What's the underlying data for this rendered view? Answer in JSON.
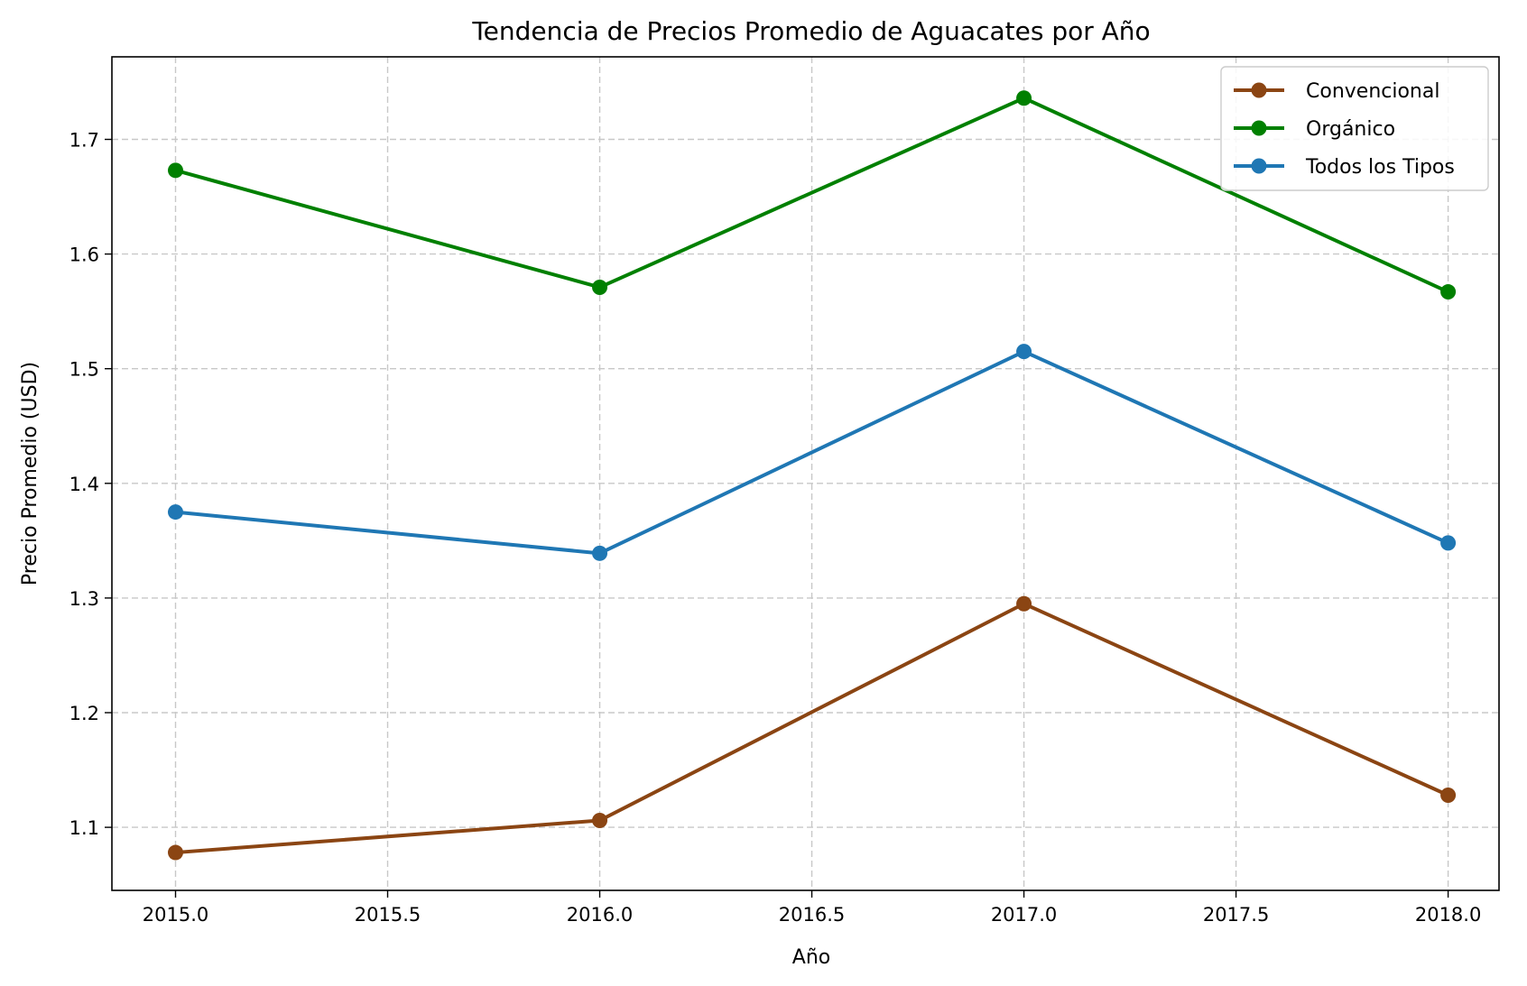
{
  "chart_data": {
    "type": "line",
    "title": "Tendencia de Precios Promedio de Aguacates por Año",
    "xlabel": "Año",
    "ylabel": "Precio Promedio (USD)",
    "x": [
      2015,
      2016,
      2017,
      2018
    ],
    "xticks": [
      "2015.0",
      "2015.5",
      "2016.0",
      "2016.5",
      "2017.0",
      "2017.5",
      "2018.0"
    ],
    "yticks": [
      "1.1",
      "1.2",
      "1.3",
      "1.4",
      "1.5",
      "1.6",
      "1.7"
    ],
    "xlim": [
      2014.85,
      2018.12
    ],
    "ylim": [
      1.045,
      1.772
    ],
    "grid": true,
    "legend_position": "top-right",
    "series": [
      {
        "name": "Convencional",
        "color": "#8B4513",
        "values": [
          1.078,
          1.106,
          1.295,
          1.128
        ]
      },
      {
        "name": "Orgánico",
        "color": "#008000",
        "values": [
          1.673,
          1.571,
          1.736,
          1.567
        ]
      },
      {
        "name": "Todos los Tipos",
        "color": "#1f77b4",
        "values": [
          1.375,
          1.339,
          1.515,
          1.348
        ]
      }
    ]
  }
}
